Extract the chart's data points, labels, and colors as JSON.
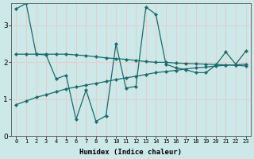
{
  "xlabel": "Humidex (Indice chaleur)",
  "bg_color": "#cce8e8",
  "grid_color": "#e8cccc",
  "line_color": "#1a6b6b",
  "xlim": [
    -0.5,
    23.5
  ],
  "ylim": [
    0,
    3.6
  ],
  "yticks": [
    0,
    1,
    2,
    3
  ],
  "xticks": [
    0,
    1,
    2,
    3,
    4,
    5,
    6,
    7,
    8,
    9,
    10,
    11,
    12,
    13,
    14,
    15,
    16,
    17,
    18,
    19,
    20,
    21,
    22,
    23
  ],
  "series1_x": [
    0,
    1,
    2,
    3,
    4,
    5,
    6,
    7,
    8,
    9,
    10,
    11,
    12,
    13,
    14,
    15,
    16,
    17,
    18,
    19,
    20,
    21,
    22,
    23
  ],
  "series1_y": [
    3.45,
    3.6,
    2.22,
    2.2,
    1.55,
    1.65,
    0.45,
    1.25,
    0.4,
    0.55,
    2.5,
    1.3,
    1.35,
    3.5,
    3.3,
    1.95,
    1.85,
    1.8,
    1.72,
    1.72,
    1.92,
    2.28,
    1.95,
    2.3
  ],
  "series2_x": [
    0,
    1,
    2,
    3,
    4,
    5,
    6,
    7,
    8,
    9,
    10,
    11,
    12,
    13,
    14,
    15,
    16,
    17,
    18,
    19,
    20,
    21,
    22,
    23
  ],
  "series2_y": [
    2.22,
    2.22,
    2.22,
    2.22,
    2.22,
    2.22,
    2.2,
    2.18,
    2.15,
    2.12,
    2.1,
    2.08,
    2.05,
    2.02,
    2.0,
    2.0,
    1.98,
    1.97,
    1.96,
    1.95,
    1.94,
    1.93,
    1.92,
    1.9
  ],
  "series3_x": [
    0,
    1,
    2,
    3,
    4,
    5,
    6,
    7,
    8,
    9,
    10,
    11,
    12,
    13,
    14,
    15,
    16,
    17,
    18,
    19,
    20,
    21,
    22,
    23
  ],
  "series3_y": [
    0.85,
    0.95,
    1.05,
    1.12,
    1.2,
    1.28,
    1.33,
    1.38,
    1.43,
    1.48,
    1.53,
    1.58,
    1.62,
    1.67,
    1.72,
    1.75,
    1.78,
    1.82,
    1.85,
    1.87,
    1.9,
    1.92,
    1.93,
    1.95
  ]
}
